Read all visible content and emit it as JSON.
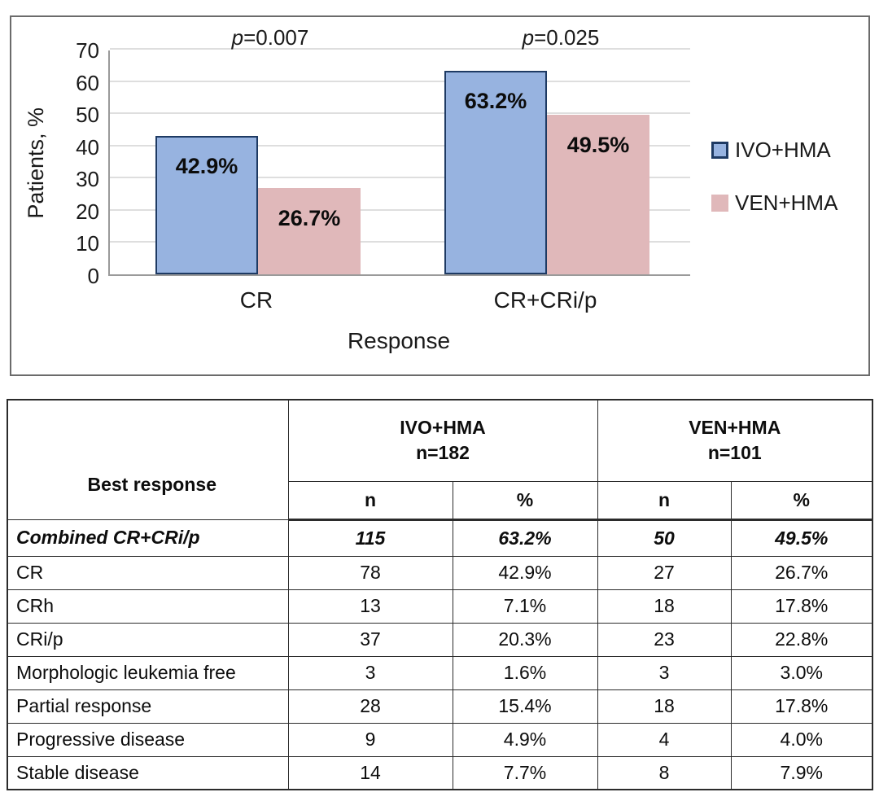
{
  "chart_data": {
    "type": "bar",
    "categories": [
      "CR",
      "CR+CRi/p"
    ],
    "series": [
      {
        "name": "IVO+HMA",
        "values": [
          42.9,
          63.2
        ],
        "labels": [
          "42.9%",
          "63.2%"
        ],
        "fill": "#97b3e0",
        "border": "#1e3a63"
      },
      {
        "name": "VEN+HMA",
        "values": [
          26.7,
          49.5
        ],
        "labels": [
          "26.7%",
          "49.5%"
        ],
        "fill": "#e0b8ba",
        "border": "#e0b8ba"
      }
    ],
    "p_values": [
      "p=0.007",
      "p=0.025"
    ],
    "xlabel": "Response",
    "ylabel": "Patients, %",
    "ylim": [
      0,
      70
    ],
    "yticks": [
      0,
      10,
      20,
      30,
      40,
      50,
      60,
      70
    ],
    "grid": true,
    "legend_position": "right"
  },
  "table": {
    "row_header": "Best response",
    "groups": [
      {
        "label": "IVO+HMA",
        "n_label": "n=182"
      },
      {
        "label": "VEN+HMA",
        "n_label": "n=101"
      }
    ],
    "sub_headers": [
      "n",
      "%",
      "n",
      "%"
    ],
    "rows": [
      {
        "label": "Combined CR+CRi/p",
        "cells": [
          "115",
          "63.2%",
          "50",
          "49.5%"
        ],
        "emphasis": true
      },
      {
        "label": "CR",
        "cells": [
          "78",
          "42.9%",
          "27",
          "26.7%"
        ],
        "emphasis": false
      },
      {
        "label": "CRh",
        "cells": [
          "13",
          "7.1%",
          "18",
          "17.8%"
        ],
        "emphasis": false
      },
      {
        "label": "CRi/p",
        "cells": [
          "37",
          "20.3%",
          "23",
          "22.8%"
        ],
        "emphasis": false
      },
      {
        "label": "Morphologic leukemia free",
        "cells": [
          "3",
          "1.6%",
          "3",
          "3.0%"
        ],
        "emphasis": false
      },
      {
        "label": "Partial response",
        "cells": [
          "28",
          "15.4%",
          "18",
          "17.8%"
        ],
        "emphasis": false
      },
      {
        "label": "Progressive disease",
        "cells": [
          "9",
          "4.9%",
          "4",
          "4.0%"
        ],
        "emphasis": false
      },
      {
        "label": "Stable disease",
        "cells": [
          "14",
          "7.7%",
          "8",
          "7.9%"
        ],
        "emphasis": false
      }
    ]
  }
}
